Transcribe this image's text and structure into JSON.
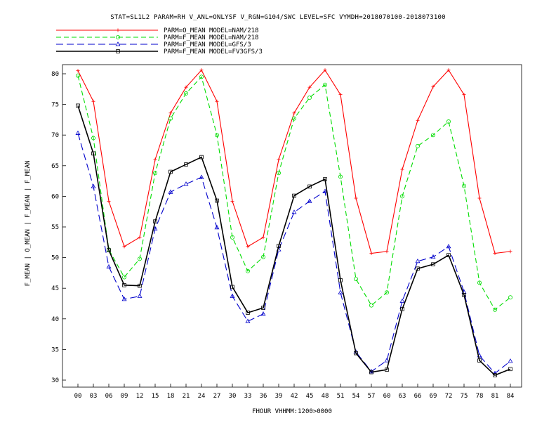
{
  "chart_data": {
    "type": "line",
    "title": "STAT=SL1L2 PARAM=RH V_ANL=ONLYSF V_RGN=G104/SWC LEVEL=SFC VYMDH=2018070100-2018073100",
    "xlabel": "FHOUR VHHMM:1200>0000",
    "ylabel": "F_MEAN | O_MEAN | F_MEAN | F_MEAN",
    "categories": [
      "00",
      "03",
      "06",
      "09",
      "12",
      "15",
      "18",
      "21",
      "24",
      "27",
      "30",
      "33",
      "36",
      "39",
      "42",
      "45",
      "48",
      "51",
      "54",
      "57",
      "60",
      "63",
      "66",
      "69",
      "72",
      "75",
      "78",
      "81",
      "84"
    ],
    "yticks": [
      "30",
      "35",
      "40",
      "45",
      "50",
      "55",
      "60",
      "65",
      "70",
      "75",
      "80"
    ],
    "ylim": [
      29,
      81.5
    ],
    "grid": false,
    "legend_position": "top-left",
    "series": [
      {
        "name": "PARM=O_MEAN MODEL=NAM/218",
        "color": "#ff0000",
        "dash": "solid",
        "marker": "plus",
        "values": [
          80.5,
          75.5,
          59.2,
          51.8,
          53.3,
          66.0,
          73.6,
          77.8,
          80.6,
          75.5,
          59.2,
          51.8,
          53.3,
          66.0,
          73.6,
          77.8,
          80.6,
          76.6,
          59.7,
          50.7,
          51.0,
          64.4,
          72.4,
          77.9,
          80.6,
          76.6,
          59.7,
          50.7,
          51.0
        ]
      },
      {
        "name": "PARM=F_MEAN MODEL=NAM/218",
        "color": "#00dd00",
        "dash": "dashed",
        "marker": "circle",
        "values": [
          79.7,
          69.5,
          51.3,
          46.8,
          49.8,
          63.8,
          72.7,
          76.8,
          79.5,
          70.0,
          53.3,
          47.8,
          50.1,
          63.8,
          72.7,
          76.1,
          78.2,
          63.2,
          46.5,
          42.2,
          44.3,
          60.0,
          68.2,
          70.0,
          72.2,
          61.7,
          45.9,
          41.5,
          43.5
        ]
      },
      {
        "name": "PARM=F_MEAN MODEL=GFS/3",
        "color": "#0000cc",
        "dash": "longdash",
        "marker": "triangle",
        "values": [
          70.3,
          61.6,
          48.5,
          43.2,
          43.7,
          54.7,
          60.7,
          62.0,
          63.1,
          54.9,
          43.7,
          39.6,
          40.8,
          51.3,
          57.4,
          59.2,
          60.8,
          44.3,
          34.6,
          31.4,
          33.2,
          42.9,
          49.4,
          50.1,
          51.8,
          44.4,
          34.0,
          31.1,
          33.1
        ]
      },
      {
        "name": "PARM=F_MEAN MODEL=FV3GFS/3",
        "color": "#000000",
        "dash": "solid",
        "marker": "square",
        "values": [
          74.8,
          67.0,
          51.2,
          45.5,
          45.4,
          55.9,
          64.0,
          65.2,
          66.4,
          59.3,
          45.2,
          41.0,
          41.8,
          51.9,
          60.1,
          61.6,
          62.8,
          46.3,
          34.4,
          31.3,
          31.7,
          41.6,
          48.2,
          48.9,
          50.4,
          43.9,
          33.2,
          30.8,
          31.8
        ]
      }
    ]
  }
}
